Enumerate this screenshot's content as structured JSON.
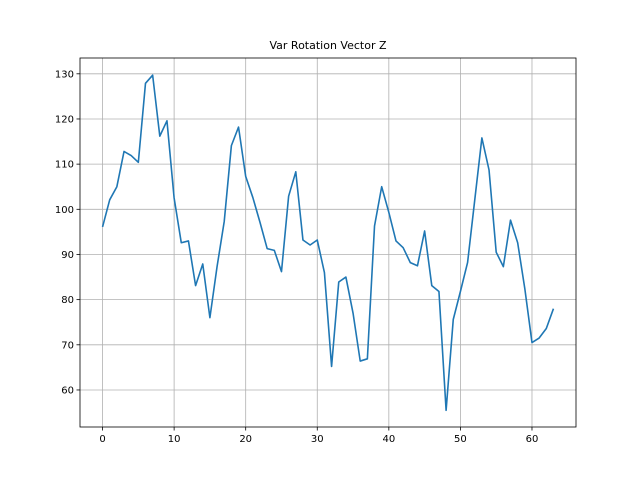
{
  "chart_data": {
    "type": "line",
    "title": "Var Rotation Vector Z",
    "xlabel": "",
    "ylabel": "",
    "xlim": [
      -3.15,
      66.15
    ],
    "ylim": [
      51.8,
      133.5
    ],
    "xticks": [
      0,
      10,
      20,
      30,
      40,
      50,
      60
    ],
    "yticks": [
      60,
      70,
      80,
      90,
      100,
      110,
      120,
      130
    ],
    "grid": true,
    "series": [
      {
        "color": "#1f77b4",
        "x": [
          0,
          1,
          2,
          3,
          4,
          5,
          6,
          7,
          8,
          9,
          10,
          11,
          12,
          13,
          14,
          15,
          16,
          17,
          18,
          19,
          20,
          21,
          22,
          23,
          24,
          25,
          26,
          27,
          28,
          29,
          30,
          31,
          32,
          33,
          34,
          35,
          36,
          37,
          38,
          39,
          40,
          41,
          42,
          43,
          44,
          45,
          46,
          47,
          48,
          49,
          50,
          51,
          52,
          53,
          54,
          55,
          56,
          57,
          58,
          59,
          60,
          61,
          62,
          63
        ],
        "values": [
          96.1,
          102.1,
          105.0,
          112.8,
          111.9,
          110.4,
          127.9,
          129.7,
          116.2,
          119.6,
          102.5,
          92.6,
          93.0,
          83.1,
          87.9,
          76.0,
          87.3,
          97.3,
          114.1,
          118.2,
          107.3,
          102.6,
          97.1,
          91.3,
          90.9,
          86.2,
          102.9,
          108.3,
          93.2,
          92.1,
          93.2,
          86.0,
          65.2,
          83.9,
          85.0,
          77.0,
          66.4,
          66.9,
          96.3,
          105.0,
          99.3,
          93.0,
          91.5,
          88.2,
          87.5,
          95.2,
          83.1,
          81.8,
          55.5,
          75.6,
          81.8,
          88.2,
          102.0,
          115.8,
          108.7,
          90.5,
          87.3,
          97.6,
          92.6,
          82.4,
          70.5,
          71.5,
          73.6,
          78.0
        ]
      }
    ]
  }
}
